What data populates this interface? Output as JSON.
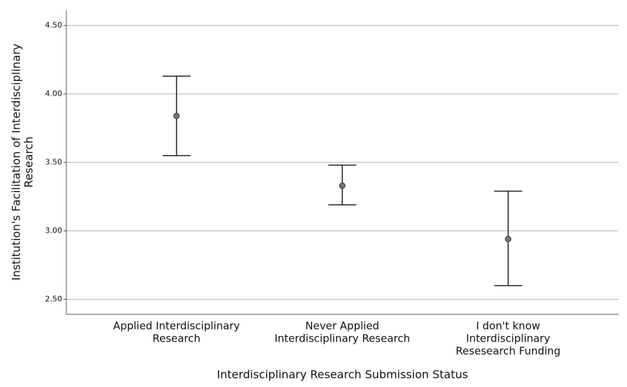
{
  "chart_data": {
    "type": "errorbar",
    "categories": [
      [
        "Applied Interdisciplinary",
        "Research"
      ],
      [
        "Never Applied",
        "Interdisciplinary Research"
      ],
      [
        "I don't know",
        "Interdisciplinary",
        "Resesearch Funding"
      ]
    ],
    "values": [
      3.84,
      3.33,
      2.94
    ],
    "lower": [
      3.55,
      3.19,
      2.6
    ],
    "upper": [
      4.13,
      3.48,
      3.29
    ],
    "x_label": "Interdisciplinary Research Submission Status",
    "y_label": [
      "Institution's Facilitation of Interdisciplinary",
      "Research"
    ],
    "ylim": [
      2.39,
      4.61
    ],
    "yticks": [
      {
        "value": 2.5,
        "label": "2.50"
      },
      {
        "value": 3,
        "label": "3.00"
      },
      {
        "value": 3.5,
        "label": "3.50"
      },
      {
        "value": 4,
        "label": "4.00"
      },
      {
        "value": 4.5,
        "label": "4.50"
      }
    ],
    "grid": true,
    "color": "#222222",
    "marker_color": "#777777"
  }
}
